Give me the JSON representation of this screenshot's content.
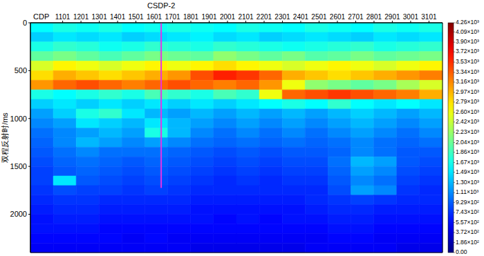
{
  "chart_data": {
    "type": "heatmap",
    "x_label": "CDP",
    "y_label": "双程反射时/ms",
    "xlim": [
      925,
      3175
    ],
    "ylim": [
      0,
      2400
    ],
    "xticks": [
      1101,
      1201,
      1301,
      1401,
      1501,
      1601,
      1701,
      1801,
      1901,
      2001,
      2101,
      2201,
      2301,
      2401,
      2501,
      2601,
      2701,
      2801,
      2901,
      3001,
      3101
    ],
    "yticks": [
      0,
      500,
      1000,
      1500,
      2000
    ],
    "x_edges": [
      925,
      1050,
      1175,
      1300,
      1425,
      1550,
      1675,
      1800,
      1925,
      2050,
      2175,
      2300,
      2425,
      2550,
      2675,
      2800,
      2925,
      3050,
      3175
    ],
    "y_edges": [
      0,
      100,
      200,
      300,
      400,
      500,
      600,
      700,
      800,
      900,
      1000,
      1100,
      1200,
      1300,
      1400,
      1500,
      1600,
      1700,
      1800,
      1900,
      2000,
      2100,
      2200,
      2300,
      2400
    ],
    "values": [
      [
        1600,
        1700,
        1650,
        1700,
        1600,
        1650,
        1700,
        1650,
        1600,
        1700,
        1650,
        1600,
        1700,
        1650,
        1600,
        1700,
        1650,
        1700
      ],
      [
        1400,
        1500,
        1450,
        1500,
        1400,
        1450,
        1500,
        1550,
        1450,
        1500,
        1400,
        1450,
        1500,
        1450,
        1400,
        1500,
        1450,
        1500
      ],
      [
        1700,
        1800,
        1750,
        1650,
        1700,
        1800,
        1750,
        1700,
        1800,
        1750,
        1700,
        1650,
        1700,
        1750,
        1800,
        1700,
        1750,
        1800
      ],
      [
        2000,
        2100,
        2000,
        1900,
        2000,
        2100,
        2050,
        2000,
        2200,
        2100,
        2000,
        2100,
        1950,
        2000,
        2100,
        2000,
        2050,
        2100
      ],
      [
        2500,
        2700,
        2600,
        2500,
        2600,
        2700,
        2600,
        2700,
        2800,
        2700,
        2600,
        2500,
        2600,
        2700,
        2600,
        2500,
        2600,
        2700
      ],
      [
        2800,
        3000,
        2900,
        2800,
        2900,
        3000,
        3100,
        3400,
        3600,
        3500,
        3300,
        3000,
        2900,
        2800,
        2900,
        3000,
        3100,
        3200
      ],
      [
        3100,
        3300,
        3400,
        3300,
        3200,
        3300,
        3400,
        3300,
        3200,
        3300,
        3100,
        2600,
        2200,
        2100,
        2000,
        2100,
        2300,
        2500
      ],
      [
        1700,
        1600,
        1700,
        1800,
        1700,
        1900,
        1800,
        1700,
        1900,
        1800,
        2600,
        3300,
        3400,
        3500,
        3400,
        3300,
        3200,
        3000
      ],
      [
        1400,
        1500,
        1400,
        1500,
        1400,
        1500,
        1400,
        1500,
        1400,
        1500,
        1600,
        1700,
        1600,
        1800,
        1600,
        1500,
        1600,
        1500
      ],
      [
        1200,
        1400,
        1700,
        1800,
        1500,
        1300,
        1200,
        1300,
        1200,
        1300,
        1200,
        1300,
        1200,
        1300,
        1400,
        1300,
        1200,
        1300
      ],
      [
        1100,
        1200,
        1500,
        1400,
        1300,
        1500,
        1300,
        1200,
        1100,
        1200,
        1100,
        1200,
        1100,
        1200,
        1300,
        1200,
        1100,
        1200
      ],
      [
        1000,
        1100,
        1200,
        1300,
        1200,
        1700,
        1300,
        1100,
        1000,
        1100,
        1000,
        1100,
        1000,
        1100,
        1200,
        1100,
        1000,
        1100
      ],
      [
        950,
        1100,
        1300,
        1200,
        1100,
        1200,
        1100,
        1000,
        950,
        1000,
        950,
        1000,
        950,
        1000,
        1100,
        1000,
        950,
        1000
      ],
      [
        900,
        1000,
        1100,
        1000,
        1000,
        1000,
        950,
        900,
        850,
        900,
        850,
        900,
        900,
        950,
        1100,
        1000,
        900,
        900
      ],
      [
        850,
        950,
        1000,
        950,
        900,
        950,
        900,
        850,
        800,
        850,
        800,
        850,
        850,
        1000,
        1300,
        1200,
        900,
        850
      ],
      [
        800,
        900,
        950,
        900,
        850,
        900,
        850,
        800,
        750,
        800,
        750,
        800,
        800,
        950,
        1200,
        1100,
        850,
        800
      ],
      [
        800,
        1500,
        900,
        850,
        800,
        850,
        800,
        750,
        700,
        750,
        700,
        750,
        750,
        900,
        1100,
        1000,
        800,
        750
      ],
      [
        750,
        850,
        800,
        800,
        750,
        800,
        750,
        700,
        700,
        700,
        700,
        700,
        700,
        850,
        1200,
        1100,
        750,
        700
      ],
      [
        700,
        750,
        750,
        700,
        700,
        700,
        700,
        650,
        650,
        650,
        650,
        650,
        700,
        750,
        800,
        750,
        700,
        700
      ],
      [
        650,
        700,
        700,
        650,
        650,
        650,
        650,
        600,
        600,
        600,
        600,
        600,
        650,
        700,
        700,
        650,
        650,
        650
      ],
      [
        600,
        650,
        650,
        600,
        600,
        600,
        600,
        600,
        550,
        600,
        550,
        600,
        600,
        650,
        650,
        600,
        600,
        600
      ],
      [
        600,
        600,
        600,
        550,
        550,
        550,
        550,
        550,
        550,
        550,
        550,
        550,
        550,
        600,
        600,
        550,
        550,
        550
      ],
      [
        550,
        550,
        550,
        550,
        500,
        550,
        500,
        500,
        500,
        500,
        500,
        500,
        500,
        550,
        550,
        500,
        500,
        500
      ],
      [
        500,
        500,
        500,
        500,
        500,
        500,
        500,
        450,
        450,
        450,
        450,
        450,
        500,
        500,
        500,
        500,
        450,
        450
      ]
    ],
    "colorbar": {
      "range": [
        0,
        4260
      ],
      "ticks": [
        {
          "value": 4260,
          "label": "4.26×10³"
        },
        {
          "value": 4090,
          "label": "4.09×10³"
        },
        {
          "value": 3900,
          "label": "3.90×10³"
        },
        {
          "value": 3720,
          "label": "3.72×10³"
        },
        {
          "value": 3530,
          "label": "3.53×10³"
        },
        {
          "value": 3340,
          "label": "3.34×10³"
        },
        {
          "value": 3160,
          "label": "3.16×10³"
        },
        {
          "value": 2970,
          "label": "2.97×10³"
        },
        {
          "value": 2790,
          "label": "2.79×10³"
        },
        {
          "value": 2600,
          "label": "2.60×10³"
        },
        {
          "value": 2420,
          "label": "2.42×10³"
        },
        {
          "value": 2230,
          "label": "2.23×10³"
        },
        {
          "value": 2040,
          "label": "2.04×10³"
        },
        {
          "value": 1860,
          "label": "1.86×10³"
        },
        {
          "value": 1670,
          "label": "1.67×10³"
        },
        {
          "value": 1490,
          "label": "1.49×10³"
        },
        {
          "value": 1300,
          "label": "1.30×10³"
        },
        {
          "value": 1110,
          "label": "1.11×10³"
        },
        {
          "value": 929,
          "label": "9.29×10²"
        },
        {
          "value": 743,
          "label": "7.43×10²"
        },
        {
          "value": 557,
          "label": "5.57×10²"
        },
        {
          "value": 372,
          "label": "3.72×10²"
        },
        {
          "value": 186,
          "label": "1.86×10²"
        },
        {
          "value": 0,
          "label": "0.00"
        }
      ]
    },
    "annotations": [
      {
        "text": "CSDP-2",
        "x": 1639,
        "y_range": [
          0,
          1725
        ],
        "color": "#e632e6"
      }
    ]
  }
}
